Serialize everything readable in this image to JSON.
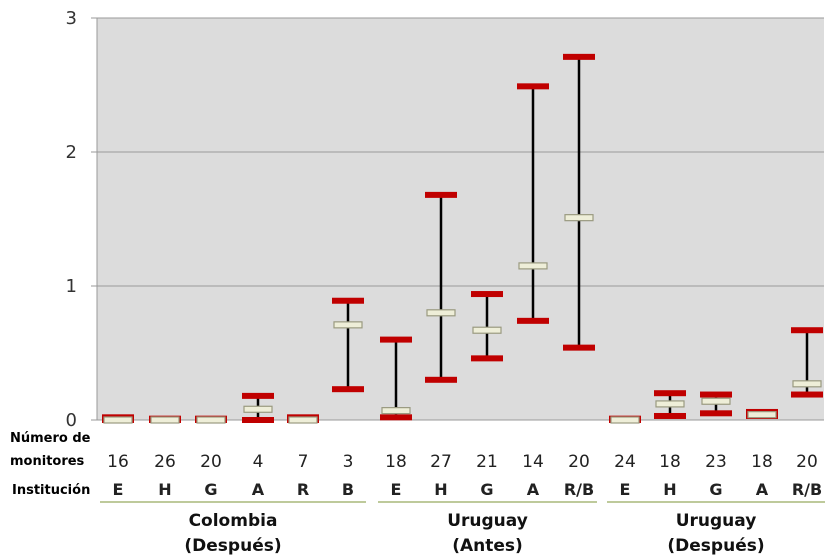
{
  "chart_data": {
    "type": "errorbar",
    "title": "",
    "ylim": [
      0,
      3
    ],
    "yticks": [
      0,
      1,
      2,
      3
    ],
    "grid": true,
    "row_labels": {
      "n_line1": "Número de",
      "n_line2": "monitores",
      "institution": "Institución"
    },
    "groups": [
      {
        "name_line1": "Colombia",
        "name_line2": "(Después)",
        "items": [
          {
            "institution": "E",
            "n": "16",
            "low": 0.0,
            "mid": 0.0,
            "high": 0.02
          },
          {
            "institution": "H",
            "n": "26",
            "low": 0.0,
            "mid": 0.0,
            "high": 0.01
          },
          {
            "institution": "G",
            "n": "20",
            "low": 0.0,
            "mid": 0.0,
            "high": 0.01
          },
          {
            "institution": "A",
            "n": "4",
            "low": 0.0,
            "mid": 0.08,
            "high": 0.18
          },
          {
            "institution": "R",
            "n": "7",
            "low": 0.0,
            "mid": 0.0,
            "high": 0.02
          },
          {
            "institution": "B",
            "n": "3",
            "low": 0.23,
            "mid": 0.71,
            "high": 0.89
          }
        ]
      },
      {
        "name_line1": "Uruguay",
        "name_line2": "(Antes)",
        "items": [
          {
            "institution": "E",
            "n": "18",
            "low": 0.02,
            "mid": 0.07,
            "high": 0.6
          },
          {
            "institution": "H",
            "n": "27",
            "low": 0.3,
            "mid": 0.8,
            "high": 1.68
          },
          {
            "institution": "G",
            "n": "21",
            "low": 0.46,
            "mid": 0.67,
            "high": 0.94
          },
          {
            "institution": "A",
            "n": "14",
            "low": 0.74,
            "mid": 1.15,
            "high": 2.49
          },
          {
            "institution": "R/B",
            "n": "20",
            "low": 0.54,
            "mid": 1.51,
            "high": 2.71
          }
        ]
      },
      {
        "name_line1": "Uruguay",
        "name_line2": "(Después)",
        "items": [
          {
            "institution": "E",
            "n": "24",
            "low": 0.0,
            "mid": 0.0,
            "high": 0.01
          },
          {
            "institution": "H",
            "n": "18",
            "low": 0.03,
            "mid": 0.12,
            "high": 0.2
          },
          {
            "institution": "G",
            "n": "23",
            "low": 0.05,
            "mid": 0.14,
            "high": 0.19
          },
          {
            "institution": "A",
            "n": "18",
            "low": 0.03,
            "mid": 0.04,
            "high": 0.06
          },
          {
            "institution": "R/B",
            "n": "20",
            "low": 0.19,
            "mid": 0.27,
            "high": 0.67
          }
        ]
      }
    ]
  },
  "colors": {
    "plot_background": "#dcdcdc",
    "gridline": "#9a9a9a",
    "range_cap": "#c00000",
    "whisker": "#000000",
    "median_fill": "#eeeed8",
    "median_stroke": "#9a9a80",
    "group_underline": "#a8b87a"
  }
}
